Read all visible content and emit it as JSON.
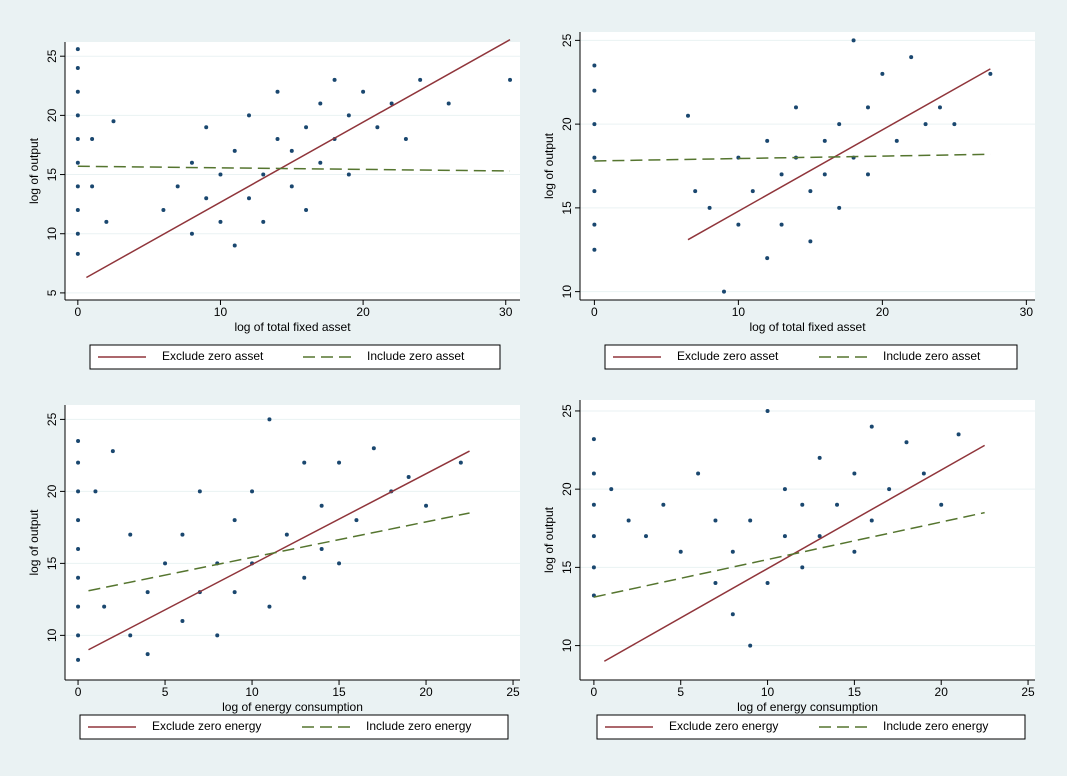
{
  "chart_data": [
    {
      "type": "scatter",
      "x_label": "log of total fixed asset",
      "y_label": "log of output",
      "xlim": [
        -0.9,
        31
      ],
      "ylim": [
        4.4,
        26.2
      ],
      "xticks": [
        0,
        10,
        20,
        30
      ],
      "yticks": [
        5,
        10,
        15,
        20,
        25
      ],
      "grid": true,
      "points": {
        "color": "#1a476f",
        "x": [
          0,
          0,
          0,
          0,
          0,
          0,
          0,
          0,
          0,
          0,
          1,
          1,
          2.5,
          2,
          6,
          7,
          8,
          8,
          9,
          9,
          10,
          10,
          11,
          11,
          12,
          12,
          13,
          13,
          14,
          14,
          15,
          15,
          16,
          16,
          17,
          17,
          18,
          18,
          19,
          19,
          20,
          21,
          22,
          23,
          24,
          26,
          30.3
        ],
        "y": [
          8.3,
          10,
          12,
          14,
          16,
          18,
          20,
          22,
          24,
          25.6,
          18,
          14,
          19.5,
          11,
          12,
          14,
          10,
          16,
          13,
          19,
          11,
          15,
          17,
          9,
          13,
          20,
          15,
          11,
          18,
          22,
          14,
          17,
          19,
          12,
          21,
          16,
          18,
          23,
          20,
          15,
          22,
          19,
          21,
          18,
          23,
          21,
          23
        ]
      },
      "series": [
        {
          "name": "Exclude zero asset",
          "color": "#90353b",
          "dash": false,
          "x": [
            0.6,
            30.3
          ],
          "y": [
            6.3,
            26.4
          ]
        },
        {
          "name": "Include zero asset",
          "color": "#55752f",
          "dash": true,
          "x": [
            0,
            30.3
          ],
          "y": [
            15.7,
            15.3
          ]
        }
      ]
    },
    {
      "type": "scatter",
      "x_label": "log of total fixed asset",
      "y_label": "log of output",
      "xlim": [
        -1,
        30.6
      ],
      "ylim": [
        9.5,
        25.5
      ],
      "xticks": [
        0,
        10,
        20,
        30
      ],
      "yticks": [
        10,
        15,
        20,
        25
      ],
      "grid": true,
      "points": {
        "color": "#1a476f",
        "x": [
          0,
          0,
          0,
          0,
          0,
          0,
          0,
          6.5,
          7,
          8,
          9,
          10,
          10,
          11,
          12,
          12,
          13,
          13,
          14,
          14,
          15,
          15,
          16,
          16,
          17,
          17,
          18,
          18,
          19,
          19,
          20,
          21,
          22,
          23,
          24,
          25,
          27.5
        ],
        "y": [
          12.5,
          14,
          16,
          18,
          20,
          22,
          23.5,
          20.5,
          16,
          15,
          10,
          18,
          14,
          16,
          12,
          19,
          17,
          14,
          18,
          21,
          16,
          13,
          19,
          17,
          20,
          15,
          25,
          18,
          21,
          17,
          23,
          19,
          24,
          20,
          21,
          20,
          23
        ]
      },
      "series": [
        {
          "name": "Exclude zero asset",
          "color": "#90353b",
          "dash": false,
          "x": [
            6.5,
            27.5
          ],
          "y": [
            13.1,
            23.3
          ]
        },
        {
          "name": "Include zero asset",
          "color": "#55752f",
          "dash": true,
          "x": [
            0,
            27.5
          ],
          "y": [
            17.8,
            18.2
          ]
        }
      ]
    },
    {
      "type": "scatter",
      "x_label": "log of energy consumption",
      "y_label": "log of output",
      "xlim": [
        -0.75,
        25.4
      ],
      "ylim": [
        6.9,
        26
      ],
      "xticks": [
        0,
        5,
        10,
        15,
        20,
        25
      ],
      "yticks": [
        10,
        15,
        20,
        25
      ],
      "grid": true,
      "points": {
        "color": "#1a476f",
        "x": [
          0,
          0,
          0,
          0,
          0,
          0,
          0,
          0,
          0,
          1,
          1.5,
          2,
          3,
          3,
          4,
          4,
          5,
          6,
          6,
          7,
          7,
          8,
          8,
          9,
          9,
          10,
          10,
          11,
          11,
          12,
          13,
          13,
          14,
          14,
          15,
          15,
          16,
          17,
          18,
          19,
          20,
          22
        ],
        "y": [
          8.3,
          10,
          12,
          14,
          16,
          18,
          20,
          22,
          23.5,
          20,
          12,
          22.8,
          17,
          10,
          13,
          8.7,
          15,
          11,
          17,
          13,
          20,
          15,
          10,
          18,
          13,
          20,
          15,
          25,
          12,
          17,
          22,
          14,
          19,
          16,
          22,
          15,
          18,
          23,
          20,
          21,
          19,
          22
        ]
      },
      "series": [
        {
          "name": "Exclude zero energy",
          "color": "#90353b",
          "dash": false,
          "x": [
            0.6,
            22.5
          ],
          "y": [
            9.0,
            22.8
          ]
        },
        {
          "name": "Include zero energy",
          "color": "#55752f",
          "dash": true,
          "x": [
            0.6,
            22.5
          ],
          "y": [
            13.1,
            18.5
          ]
        }
      ]
    },
    {
      "type": "scatter",
      "x_label": "log of energy consumption",
      "y_label": "log of output",
      "xlim": [
        -0.8,
        25.4
      ],
      "ylim": [
        7.8,
        25.7
      ],
      "xticks": [
        0,
        5,
        10,
        15,
        20,
        25
      ],
      "yticks": [
        10,
        15,
        20,
        25
      ],
      "grid": true,
      "points": {
        "color": "#1a476f",
        "x": [
          0,
          0,
          0,
          0,
          0,
          0,
          1,
          2,
          3,
          4,
          5,
          6,
          7,
          7,
          8,
          8,
          9,
          9,
          10,
          10,
          11,
          11,
          12,
          12,
          13,
          13,
          14,
          15,
          15,
          16,
          16,
          17,
          18,
          19,
          20,
          21
        ],
        "y": [
          13.2,
          15,
          17,
          19,
          21,
          23.2,
          20,
          18,
          17,
          19,
          16,
          21,
          14,
          18,
          12,
          16,
          10,
          18,
          25,
          14,
          17,
          20,
          15,
          19,
          22,
          17,
          19,
          16,
          21,
          24,
          18,
          20,
          23,
          21,
          19,
          23.5
        ]
      },
      "series": [
        {
          "name": "Exclude zero energy",
          "color": "#90353b",
          "dash": false,
          "x": [
            0.6,
            22.5
          ],
          "y": [
            9.0,
            22.8
          ]
        },
        {
          "name": "Include zero energy",
          "color": "#55752f",
          "dash": true,
          "x": [
            0,
            22.5
          ],
          "y": [
            13.1,
            18.5
          ]
        }
      ]
    }
  ]
}
